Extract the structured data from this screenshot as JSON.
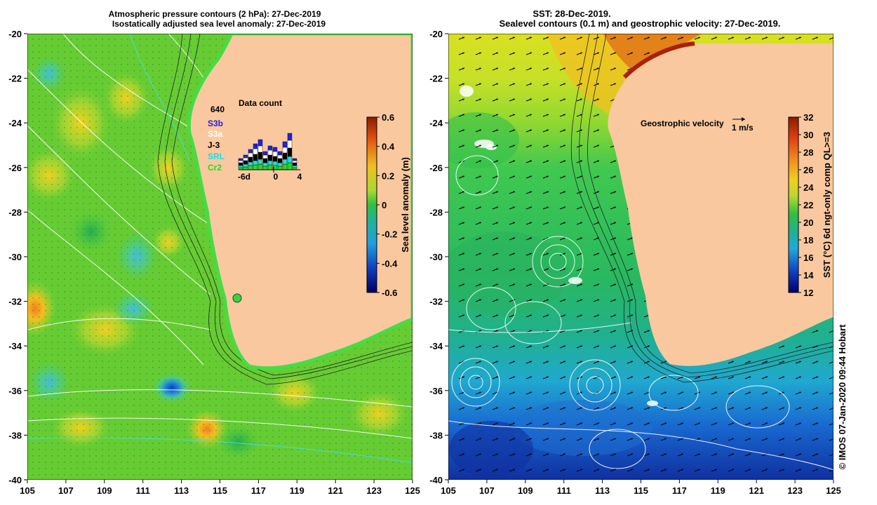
{
  "left_panel": {
    "title_line1": "Atmospheric pressure contours (2 hPa): 27-Dec-2019",
    "title_line2": "Isostatically adjusted sea level anomaly: 27-Dec-2019",
    "colorbar": {
      "label": "Sea level anomaly (m)",
      "ticks": [
        "0.6",
        "0.4",
        "0.2",
        "0",
        "-0.2",
        "-0.4",
        "-0.6"
      ]
    },
    "data_count": {
      "title": "Data count",
      "max_label": "640",
      "x_ticks": [
        "-6d",
        "0",
        "4"
      ],
      "satellites": [
        {
          "name": "S3b",
          "color": "#2222dd"
        },
        {
          "name": "S3a",
          "color": "#ffffff"
        },
        {
          "name": "J-3",
          "color": "#000000"
        },
        {
          "name": "SRL",
          "color": "#22dddd"
        },
        {
          "name": "Cr2",
          "color": "#22dd22"
        }
      ]
    }
  },
  "right_panel": {
    "title_line1": "SST: 28-Dec-2019.",
    "title_line2": "Sealevel contours (0.1 m) and geostrophic velocity: 27-Dec-2019.",
    "colorbar": {
      "label": "SST (°C) 6d ngt-only comp QL>=3",
      "ticks": [
        "32",
        "30",
        "28",
        "26",
        "24",
        "22",
        "20",
        "18",
        "16",
        "14",
        "12"
      ]
    },
    "velocity_legend": {
      "label": "Geostrophic velocity",
      "scale": "1 m/s"
    }
  },
  "axes": {
    "lon_ticks": [
      "105",
      "107",
      "109",
      "111",
      "113",
      "115",
      "117",
      "119",
      "121",
      "123",
      "125"
    ],
    "lat_ticks": [
      "-20",
      "-22",
      "-24",
      "-26",
      "-28",
      "-30",
      "-32",
      "-34",
      "-36",
      "-38",
      "-40"
    ]
  },
  "credit": "© IMOS 07-Jan-2020 09:44 Hobart"
}
